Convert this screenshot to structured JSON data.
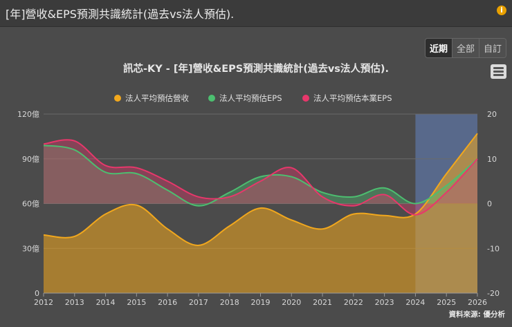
{
  "header": {
    "title": "[年]營收&EPS預測共識統計(過去vs法人預估).",
    "info_icon": "info-icon"
  },
  "range_buttons": [
    "近期",
    "全部",
    "自訂"
  ],
  "menu_icon": "hamburger-menu-icon",
  "credit": "資料來源: 優分析",
  "colors": {
    "revenue": "#f2a81d",
    "eps": "#4cbf70",
    "core_eps": "#e8376b",
    "forecast_band": "#5a6e96"
  },
  "chart_data": {
    "type": "area",
    "title": "訊芯-KY - [年]營收&EPS預測共識統計(過去vs法人預估).",
    "x": [
      "2012",
      "2013",
      "2014",
      "2015",
      "2016",
      "2017",
      "2018",
      "2019",
      "2020",
      "2021",
      "2022",
      "2023",
      "2024",
      "2025",
      "2026"
    ],
    "forecast_range": [
      "2024",
      "2026"
    ],
    "y_left": {
      "range": [
        0,
        120
      ],
      "ticks": [
        "0",
        "30億",
        "60億",
        "90億",
        "120億"
      ]
    },
    "y_right": {
      "range": [
        -20,
        20
      ],
      "ticks": [
        "-20",
        "-10",
        "0",
        "10",
        "20"
      ]
    },
    "legend_position": "top-center",
    "series": [
      {
        "name": "法人平均預估營收",
        "axis": "left",
        "values": [
          39,
          38,
          53,
          59,
          43,
          32,
          45,
          57,
          49,
          43,
          53,
          52,
          53,
          80,
          107
        ]
      },
      {
        "name": "法人平均預估EPS",
        "axis": "right",
        "values": [
          13,
          12,
          7,
          6.7,
          3,
          -0.5,
          2.5,
          6,
          6,
          2.5,
          1.5,
          3.5,
          0,
          4,
          10
        ]
      },
      {
        "name": "法人平均預估本業EPS",
        "axis": "right",
        "values": [
          13.3,
          14,
          8.5,
          8,
          5,
          1.5,
          1.5,
          5,
          8,
          1.5,
          -0.5,
          2,
          -2.5,
          2.5,
          10
        ]
      }
    ]
  }
}
